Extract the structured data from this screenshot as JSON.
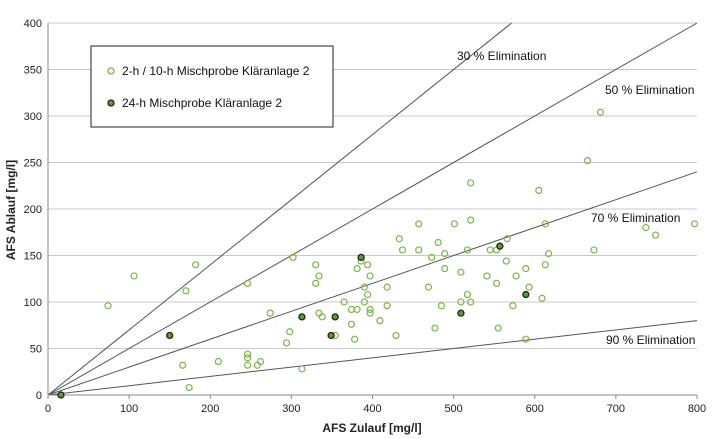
{
  "chart_data": {
    "type": "scatter",
    "xlabel": "AFS Zulauf [mg/l]",
    "ylabel": "AFS Ablauf [mg/l]",
    "xlim": [
      0,
      800
    ],
    "ylim": [
      0,
      400
    ],
    "xticks": [
      0,
      100,
      200,
      300,
      400,
      500,
      600,
      700,
      800
    ],
    "yticks": [
      0,
      50,
      100,
      150,
      200,
      250,
      300,
      350,
      400
    ],
    "grid": "horizontal",
    "legend_placement": "top-left",
    "series": [
      {
        "name": "2-h / 10-h Mischprobe Kläranlage 2",
        "marker": "open-circle",
        "color": "#7ab648",
        "points": [
          [
            74,
            96
          ],
          [
            106,
            128
          ],
          [
            170,
            112
          ],
          [
            182,
            140
          ],
          [
            246,
            120
          ],
          [
            274,
            88
          ],
          [
            302,
            148
          ],
          [
            330,
            140
          ],
          [
            334,
            128
          ],
          [
            330,
            120
          ],
          [
            334,
            88
          ],
          [
            338,
            84
          ],
          [
            298,
            68
          ],
          [
            294,
            56
          ],
          [
            246,
            44
          ],
          [
            246,
            40
          ],
          [
            246,
            32
          ],
          [
            258,
            32
          ],
          [
            262,
            36
          ],
          [
            210,
            36
          ],
          [
            166,
            32
          ],
          [
            174,
            8
          ],
          [
            313,
            28
          ],
          [
            354,
            64
          ],
          [
            386,
            144
          ],
          [
            381,
            136
          ],
          [
            394,
            140
          ],
          [
            397,
            128
          ],
          [
            390,
            116
          ],
          [
            394,
            108
          ],
          [
            365,
            100
          ],
          [
            390,
            100
          ],
          [
            374,
            92
          ],
          [
            381,
            92
          ],
          [
            397,
            92
          ],
          [
            397,
            88
          ],
          [
            374,
            76
          ],
          [
            378,
            60
          ],
          [
            409,
            80
          ],
          [
            418,
            116
          ],
          [
            418,
            96
          ],
          [
            429,
            64
          ],
          [
            433,
            168
          ],
          [
            437,
            156
          ],
          [
            457,
            184
          ],
          [
            457,
            156
          ],
          [
            473,
            148
          ],
          [
            481,
            164
          ],
          [
            489,
            152
          ],
          [
            489,
            136
          ],
          [
            469,
            116
          ],
          [
            485,
            96
          ],
          [
            477,
            72
          ],
          [
            501,
            184
          ],
          [
            521,
            228
          ],
          [
            521,
            188
          ],
          [
            517,
            156
          ],
          [
            509,
            132
          ],
          [
            517,
            108
          ],
          [
            509,
            100
          ],
          [
            521,
            100
          ],
          [
            541,
            128
          ],
          [
            545,
            156
          ],
          [
            553,
            156
          ],
          [
            553,
            120
          ],
          [
            555,
            72
          ],
          [
            681,
            304
          ],
          [
            665,
            252
          ],
          [
            605,
            220
          ],
          [
            613,
            184
          ],
          [
            566,
            168
          ],
          [
            617,
            152
          ],
          [
            565,
            144
          ],
          [
            589,
            136
          ],
          [
            613,
            140
          ],
          [
            577,
            128
          ],
          [
            593,
            116
          ],
          [
            573,
            96
          ],
          [
            609,
            104
          ],
          [
            589,
            60
          ],
          [
            673,
            156
          ],
          [
            737,
            180
          ],
          [
            749,
            172
          ],
          [
            797,
            184
          ]
        ]
      },
      {
        "name": "24-h Mischprobe Kläranlage 2",
        "marker": "filled-circle",
        "color": "#5a9e2f",
        "edge_color": "#222222",
        "points": [
          [
            16,
            0
          ],
          [
            150,
            64
          ],
          [
            313,
            84
          ],
          [
            354,
            84
          ],
          [
            349,
            64
          ],
          [
            386,
            148
          ],
          [
            509,
            88
          ],
          [
            557,
            160
          ],
          [
            589,
            108
          ]
        ]
      }
    ],
    "reference_lines": [
      {
        "label": "30 % Elimination",
        "slope": 0.7
      },
      {
        "label": "50 % Elimination",
        "slope": 0.5
      },
      {
        "label": "70 % Elimination",
        "slope": 0.3
      },
      {
        "label": "90 % Elimination",
        "slope": 0.1
      }
    ]
  }
}
